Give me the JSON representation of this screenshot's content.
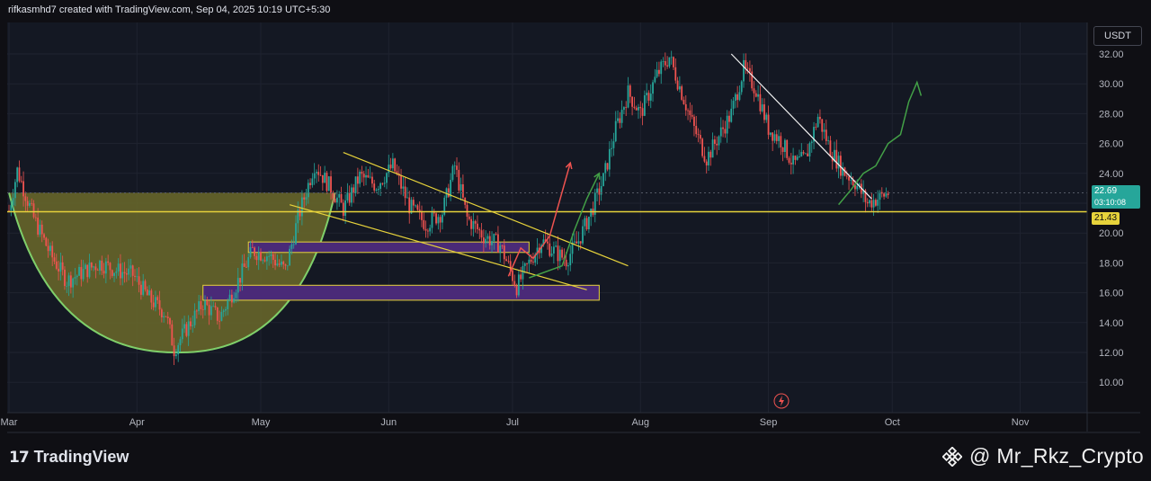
{
  "header": {
    "attribution": "rifkasmhd7 created with TradingView.com, Sep 04, 2025 10:19 UTC+5:30"
  },
  "currency": "USDT",
  "footer": {
    "brand_mark": "17",
    "brand": "TradingView",
    "watermark": "@ Mr_Rkz_Crypto"
  },
  "icons": {
    "brand": "tradingview-logo-icon",
    "watermark": "binance-logo-icon",
    "flash": "lightning-icon"
  },
  "colors": {
    "background": "#141823",
    "up": "#26a69a",
    "down": "#ef5350",
    "support_line": "#e6d23b",
    "cup_fill": "#6b6a2a",
    "cup_line": "#7fcf6a",
    "zone_fill": "#4a2a78",
    "zone_border": "#e6d23b",
    "trend_line": "#f2f2f2",
    "projection": "#43a047"
  },
  "price_labels": {
    "current": "22.69",
    "countdown": "03:10:08",
    "support": "21.43"
  },
  "chart_data": {
    "type": "candlestick",
    "y_axis": {
      "ticks": [
        "10.00",
        "12.00",
        "14.00",
        "16.00",
        "18.00",
        "20.00",
        "22.00",
        "24.00",
        "26.00",
        "28.00",
        "30.00",
        "32.00"
      ],
      "ylim": [
        8.0,
        33.5
      ]
    },
    "x_axis": {
      "ticks": [
        "Mar",
        "Apr",
        "May",
        "Jun",
        "Jul",
        "Aug",
        "Sep",
        "Oct",
        "Nov"
      ]
    },
    "grid": true,
    "support_level": 21.43,
    "current_price": 22.69,
    "price_path": [
      {
        "d": 0,
        "p": 21.5
      },
      {
        "d": 2,
        "p": 24.2
      },
      {
        "d": 6,
        "p": 21.0
      },
      {
        "d": 10,
        "p": 18.6
      },
      {
        "d": 14,
        "p": 16.8
      },
      {
        "d": 18,
        "p": 17.4
      },
      {
        "d": 22,
        "p": 18.0
      },
      {
        "d": 26,
        "p": 17.5
      },
      {
        "d": 30,
        "p": 17.2
      },
      {
        "d": 34,
        "p": 15.6
      },
      {
        "d": 38,
        "p": 14.6
      },
      {
        "d": 40,
        "p": 12.2
      },
      {
        "d": 43,
        "p": 13.6
      },
      {
        "d": 47,
        "p": 15.3
      },
      {
        "d": 51,
        "p": 14.3
      },
      {
        "d": 55,
        "p": 16.5
      },
      {
        "d": 59,
        "p": 18.8
      },
      {
        "d": 63,
        "p": 18.5
      },
      {
        "d": 67,
        "p": 17.5
      },
      {
        "d": 70,
        "p": 21.0
      },
      {
        "d": 74,
        "p": 24.6
      },
      {
        "d": 78,
        "p": 23.0
      },
      {
        "d": 81,
        "p": 21.6
      },
      {
        "d": 85,
        "p": 23.8
      },
      {
        "d": 89,
        "p": 23.2
      },
      {
        "d": 93,
        "p": 24.5
      },
      {
        "d": 97,
        "p": 21.8
      },
      {
        "d": 101,
        "p": 20.6
      },
      {
        "d": 105,
        "p": 21.4
      },
      {
        "d": 108,
        "p": 24.5
      },
      {
        "d": 111,
        "p": 21.0
      },
      {
        "d": 115,
        "p": 19.8
      },
      {
        "d": 119,
        "p": 19.2
      },
      {
        "d": 123,
        "p": 16.4
      },
      {
        "d": 126,
        "p": 18.0
      },
      {
        "d": 129,
        "p": 19.5
      },
      {
        "d": 132,
        "p": 18.8
      },
      {
        "d": 135,
        "p": 18.2
      },
      {
        "d": 138,
        "p": 19.5
      },
      {
        "d": 141,
        "p": 21.4
      },
      {
        "d": 144,
        "p": 23.6
      },
      {
        "d": 147,
        "p": 27.0
      },
      {
        "d": 150,
        "p": 29.4
      },
      {
        "d": 153,
        "p": 28.0
      },
      {
        "d": 157,
        "p": 30.6
      },
      {
        "d": 160,
        "p": 31.8
      },
      {
        "d": 163,
        "p": 29.4
      },
      {
        "d": 166,
        "p": 27.0
      },
      {
        "d": 169,
        "p": 25.0
      },
      {
        "d": 172,
        "p": 26.5
      },
      {
        "d": 175,
        "p": 28.0
      },
      {
        "d": 178,
        "p": 31.0
      },
      {
        "d": 181,
        "p": 29.6
      },
      {
        "d": 184,
        "p": 27.0
      },
      {
        "d": 187,
        "p": 26.2
      },
      {
        "d": 190,
        "p": 24.6
      },
      {
        "d": 193,
        "p": 25.0
      },
      {
        "d": 196,
        "p": 27.8
      },
      {
        "d": 199,
        "p": 25.6
      },
      {
        "d": 202,
        "p": 24.2
      },
      {
        "d": 205,
        "p": 23.4
      },
      {
        "d": 208,
        "p": 22.0
      },
      {
        "d": 211,
        "p": 22.4
      },
      {
        "d": 213,
        "p": 22.69
      }
    ],
    "annotations": {
      "cup": {
        "left": {
          "d": 0,
          "p": 22.7
        },
        "bottom": {
          "d": 41,
          "p": 12.0
        },
        "right": {
          "d": 79,
          "p": 22.7
        }
      },
      "zones": [
        {
          "d0": 58,
          "d1": 126,
          "top": 19.4,
          "bottom": 18.7
        },
        {
          "d0": 47,
          "d1": 143,
          "top": 16.5,
          "bottom": 15.5
        }
      ],
      "falling_wedge": [
        {
          "from": {
            "d": 81,
            "p": 25.4
          },
          "to": {
            "d": 150,
            "p": 17.8
          }
        },
        {
          "from": {
            "d": 68,
            "p": 21.9
          },
          "to": {
            "d": 140,
            "p": 16.2
          }
        }
      ],
      "descending_trendline": {
        "from": {
          "d": 175,
          "p": 32.0
        },
        "to": {
          "d": 209,
          "p": 22.3
        }
      },
      "projection": [
        {
          "d": 201,
          "p": 21.9
        },
        {
          "d": 204,
          "p": 22.9
        },
        {
          "d": 207,
          "p": 24.0
        },
        {
          "d": 210,
          "p": 24.5
        },
        {
          "d": 213,
          "p": 26.0
        },
        {
          "d": 216,
          "p": 26.6
        },
        {
          "d": 218,
          "p": 28.8
        },
        {
          "d": 220,
          "p": 30.1
        },
        {
          "d": 221,
          "p": 29.2
        }
      ],
      "red_arrow": [
        {
          "d": 121,
          "p": 17.1
        },
        {
          "d": 124,
          "p": 19.0
        },
        {
          "d": 127,
          "p": 18.3
        },
        {
          "d": 131,
          "p": 19.8
        },
        {
          "d": 136,
          "p": 24.7
        }
      ],
      "green_arrow": [
        {
          "d": 126,
          "p": 17.0
        },
        {
          "d": 134,
          "p": 17.8
        },
        {
          "d": 137,
          "p": 20.2
        },
        {
          "d": 140,
          "p": 22.3
        },
        {
          "d": 143,
          "p": 24.0
        }
      ]
    }
  }
}
